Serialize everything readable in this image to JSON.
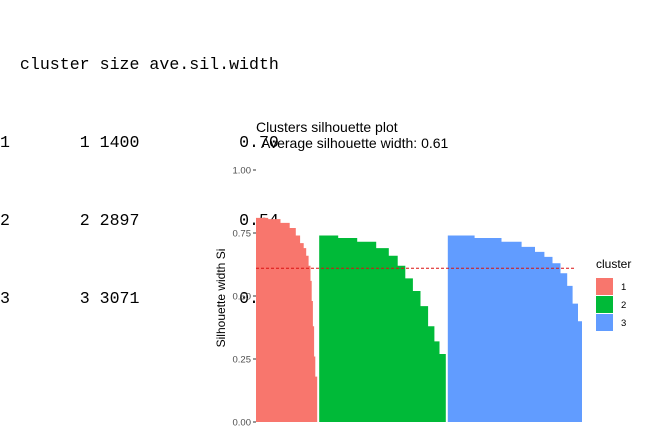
{
  "summary_table": {
    "header": [
      "cluster",
      "size",
      "ave.sil.width"
    ],
    "rows": [
      {
        "row_name": "1",
        "cluster": "1",
        "size": "1400",
        "ave_sil_width": "0.70"
      },
      {
        "row_name": "2",
        "cluster": "2",
        "size": "2897",
        "ave_sil_width": "0.54"
      },
      {
        "row_name": "3",
        "cluster": "3",
        "size": "3071",
        "ave_sil_width": "0.62"
      }
    ]
  },
  "chart_data": {
    "type": "bar",
    "title": "Clusters silhouette plot",
    "subtitle": "Average silhouette width: 0.61",
    "xlabel": "",
    "ylabel": "Silhouette width Si",
    "ylim": [
      0,
      1
    ],
    "yticks": [
      "0.00",
      "0.25",
      "0.50",
      "0.75",
      "1.00"
    ],
    "grid": false,
    "legend": {
      "title": "cluster",
      "placement": "right",
      "entries": [
        "1",
        "2",
        "3"
      ]
    },
    "average_line": {
      "value": 0.61,
      "color": "#dd1111",
      "style": "dashed"
    },
    "series": [
      {
        "name": "1",
        "color": "#F8766D",
        "size": 1400,
        "profile": [
          [
            0,
            0.81
          ],
          [
            0.2,
            0.805
          ],
          [
            0.4,
            0.79
          ],
          [
            0.55,
            0.77
          ],
          [
            0.65,
            0.74
          ],
          [
            0.72,
            0.71
          ],
          [
            0.78,
            0.69
          ],
          [
            0.82,
            0.66
          ],
          [
            0.86,
            0.62
          ],
          [
            0.89,
            0.56
          ],
          [
            0.91,
            0.48
          ],
          [
            0.93,
            0.38
          ],
          [
            0.95,
            0.26
          ],
          [
            0.97,
            0.18
          ],
          [
            1.0,
            0.16
          ]
        ]
      },
      {
        "name": "2",
        "color": "#00BA38",
        "size": 2897,
        "profile": [
          [
            0,
            0.74
          ],
          [
            0.15,
            0.73
          ],
          [
            0.3,
            0.715
          ],
          [
            0.45,
            0.69
          ],
          [
            0.55,
            0.66
          ],
          [
            0.62,
            0.62
          ],
          [
            0.68,
            0.57
          ],
          [
            0.74,
            0.52
          ],
          [
            0.8,
            0.46
          ],
          [
            0.86,
            0.38
          ],
          [
            0.91,
            0.32
          ],
          [
            0.95,
            0.27
          ],
          [
            1.0,
            0.22
          ]
        ]
      },
      {
        "name": "3",
        "color": "#619CFF",
        "size": 3071,
        "profile": [
          [
            0,
            0.74
          ],
          [
            0.2,
            0.73
          ],
          [
            0.4,
            0.715
          ],
          [
            0.55,
            0.695
          ],
          [
            0.65,
            0.675
          ],
          [
            0.72,
            0.655
          ],
          [
            0.78,
            0.63
          ],
          [
            0.84,
            0.59
          ],
          [
            0.89,
            0.54
          ],
          [
            0.93,
            0.47
          ],
          [
            0.97,
            0.4
          ],
          [
            1.0,
            0.35
          ]
        ]
      }
    ]
  }
}
